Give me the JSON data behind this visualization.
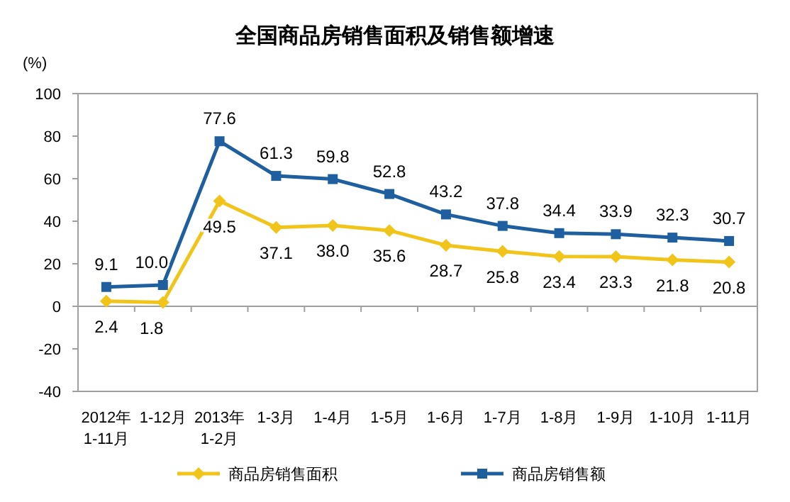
{
  "chart_data": {
    "type": "line",
    "title": "全国商品房销售面积及销售额增速",
    "ylabel": "(%)",
    "categories": [
      "2012年\n1-11月",
      "1-12月",
      "2013年\n1-2月",
      "1-3月",
      "1-4月",
      "1-5月",
      "1-6月",
      "1-7月",
      "1-8月",
      "1-9月",
      "1-10月",
      "1-11月"
    ],
    "series": [
      {
        "name": "商品房销售面积",
        "color": "#f0c419",
        "marker": "diamond",
        "values": [
          2.4,
          1.8,
          49.5,
          37.1,
          38.0,
          35.6,
          28.7,
          25.8,
          23.4,
          23.3,
          21.8,
          20.8
        ],
        "value_labels": [
          "2.4",
          "1.8",
          "49.5",
          "37.1",
          "38.0",
          "35.6",
          "28.7",
          "25.8",
          "23.4",
          "23.3",
          "21.8",
          "20.8"
        ]
      },
      {
        "name": "商品房销售额",
        "color": "#1f5f9f",
        "marker": "square",
        "values": [
          9.1,
          10.0,
          77.6,
          61.3,
          59.8,
          52.8,
          43.2,
          37.8,
          34.4,
          33.9,
          32.3,
          30.7
        ],
        "value_labels": [
          "9.1",
          "10.0",
          "77.6",
          "61.3",
          "59.8",
          "52.8",
          "43.2",
          "37.8",
          "34.4",
          "33.9",
          "32.3",
          "30.7"
        ]
      }
    ],
    "ylim": [
      -40,
      100
    ],
    "yticks": [
      -40,
      -20,
      0,
      20,
      40,
      60,
      80,
      100
    ],
    "legend": "bottom"
  }
}
